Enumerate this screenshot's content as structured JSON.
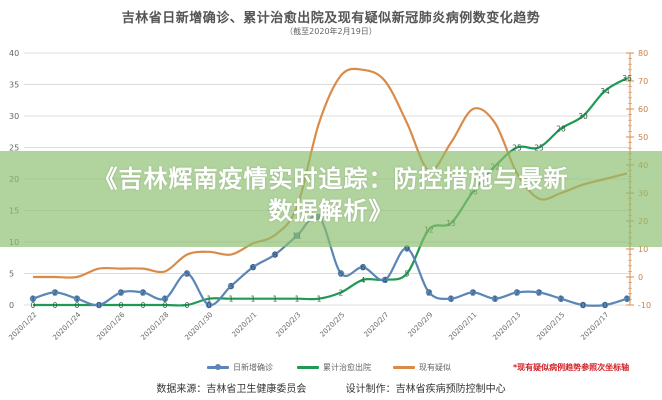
{
  "header": {
    "title": "吉林省日新增确诊、累计治愈出院及现有疑似新冠肺炎病例数变化趋势",
    "subtitle": "（截至2020年2月19日）"
  },
  "banner": {
    "line1": "《吉林辉南疫情实时追踪：防控措施与最新",
    "line2": "数据解析》"
  },
  "legend": {
    "items": [
      {
        "label": "日新增确诊",
        "color": "#5b86b5"
      },
      {
        "label": "累计治愈出院",
        "color": "#1f9a55"
      },
      {
        "label": "现有疑似",
        "color": "#d98c4a"
      }
    ],
    "note": "*现有疑似病例趋势参照次坐标轴"
  },
  "footer": {
    "source": "数据来源：吉林省卫生健康委员会",
    "design": "设计制作：吉林省疾病预防控制中心"
  },
  "colors": {
    "daily_new": "#5b86b5",
    "recovered": "#1f9a55",
    "suspected": "#d98c4a",
    "banner": "#8cbe6e",
    "note": "#d2232a"
  },
  "chart_data": {
    "type": "line",
    "title": "吉林省日新增确诊、累计治愈出院及现有疑似新冠肺炎病例数变化趋势",
    "subtitle": "（截至2020年2月19日）",
    "x": [
      "2020/1/22",
      "2020/1/23",
      "2020/1/24",
      "2020/1/25",
      "2020/1/26",
      "2020/1/27",
      "2020/1/28",
      "2020/1/29",
      "2020/1/30",
      "2020/1/31",
      "2020/2/1",
      "2020/2/2",
      "2020/2/3",
      "2020/2/4",
      "2020/2/5",
      "2020/2/6",
      "2020/2/7",
      "2020/2/8",
      "2020/2/9",
      "2020/2/10",
      "2020/2/11",
      "2020/2/12",
      "2020/2/13",
      "2020/2/14",
      "2020/2/15",
      "2020/2/16",
      "2020/2/17",
      "2020/2/18"
    ],
    "x_tick_labels": [
      "2020/1/22",
      "2020/1/24",
      "2020/1/26",
      "2020/1/28",
      "2020/1/30",
      "2020/2/1",
      "2020/2/3",
      "2020/2/5",
      "2020/2/7",
      "2020/2/9",
      "2020/2/11",
      "2020/2/13",
      "2020/2/15",
      "2020/2/17"
    ],
    "series": [
      {
        "name": "日新增确诊",
        "axis": "left",
        "labeled": true,
        "values": [
          1,
          2,
          1,
          0,
          2,
          2,
          1,
          5,
          0,
          3,
          6,
          8,
          11,
          14,
          5,
          6,
          4,
          9,
          2,
          1,
          2,
          1,
          2,
          2,
          1,
          0,
          0,
          1
        ]
      },
      {
        "name": "累计治愈出院",
        "axis": "left",
        "labeled": true,
        "values": [
          0,
          0,
          0,
          0,
          0,
          0,
          0,
          0,
          1,
          1,
          1,
          1,
          1,
          1,
          2,
          4,
          4,
          5,
          12,
          13,
          18,
          22,
          25,
          25,
          28,
          30,
          34,
          36
        ]
      },
      {
        "name": "现有疑似",
        "axis": "right",
        "labeled": false,
        "values": [
          0,
          0,
          0,
          3,
          3,
          3,
          2,
          8,
          9,
          8,
          12,
          15,
          25,
          55,
          72,
          74,
          70,
          55,
          38,
          48,
          60,
          55,
          37,
          28,
          30,
          33,
          35,
          37
        ]
      }
    ],
    "ylim_left": [
      0,
      40
    ],
    "yticks_left": [
      0,
      5,
      10,
      15,
      20,
      25,
      30,
      35,
      40
    ],
    "ylim_right": [
      -10,
      80
    ],
    "yticks_right": [
      -10,
      0,
      10,
      20,
      30,
      40,
      50,
      60,
      70,
      80
    ],
    "grid": true,
    "legend_position": "bottom",
    "annotation": "*现有疑似病例趋势参照次坐标轴"
  }
}
